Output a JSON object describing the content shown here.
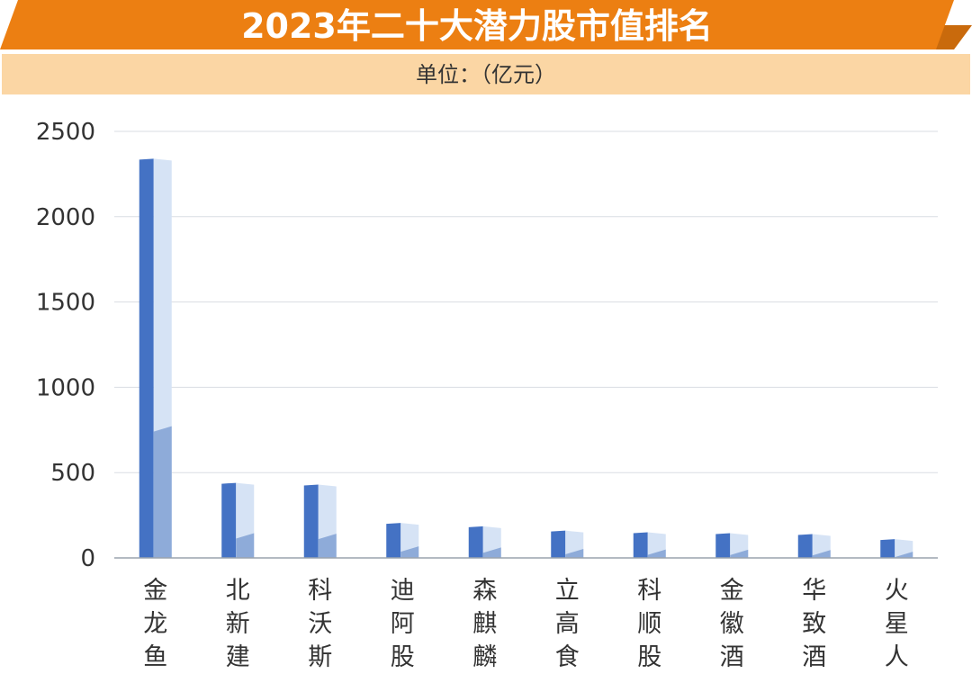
{
  "colors": {
    "title_bar": "#ec7f12",
    "title_bar_dark": "#c96a0c",
    "unit_bar": "#fbd6a4",
    "bar_front": "#4472c4",
    "bar_side": "#d6e3f5",
    "bar_side_fill": "#8eabd9",
    "grid": "#d9dde3",
    "axis": "#9aa3ad"
  },
  "chart_data": {
    "type": "bar",
    "title": "2023年二十大潜力股市值排名",
    "unit_label": "单位：（亿元）",
    "xlabel": "",
    "ylabel": "",
    "ylim": [
      0,
      2500
    ],
    "yticks": [
      "0",
      "500",
      "1000",
      "1500",
      "2000",
      "2500"
    ],
    "grid": true,
    "categories": [
      "金龙鱼",
      "北新建材",
      "科沃斯",
      "迪阿股份",
      "森麒麟",
      "立高食品",
      "科顺股份",
      "金徽酒",
      "华致酒行",
      "火星人"
    ],
    "values": [
      2340,
      440,
      430,
      205,
      185,
      160,
      150,
      145,
      140,
      110
    ]
  }
}
